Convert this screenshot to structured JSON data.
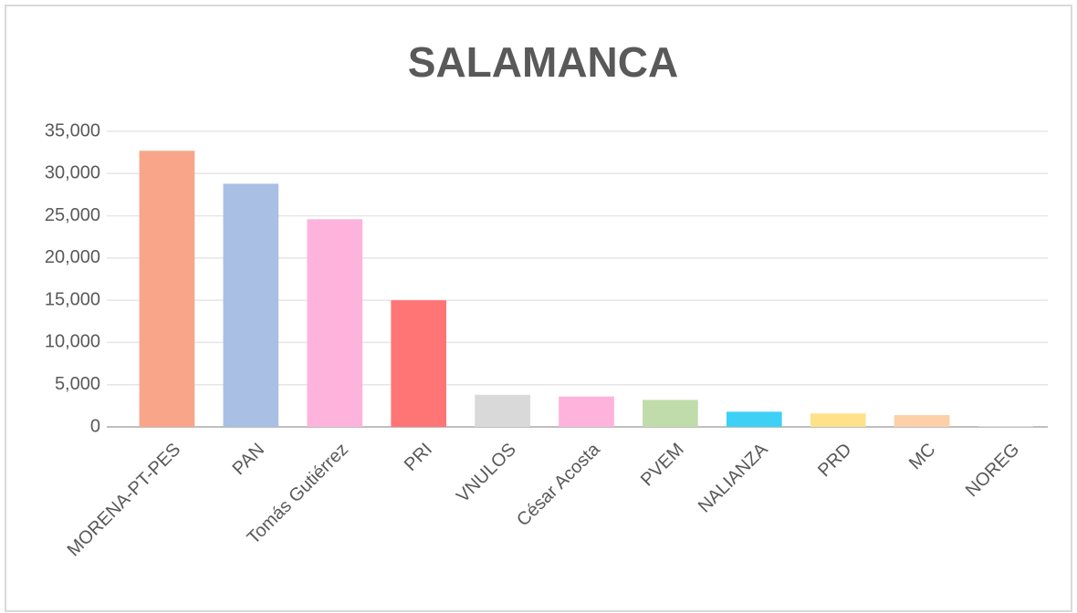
{
  "chart_data": {
    "type": "bar",
    "title": "SALAMANCA",
    "categories": [
      "MORENA-PT-PES",
      "PAN",
      "Tomás Gutiérrez",
      "PRI",
      "VNULOS",
      "César Acosta",
      "PVEM",
      "NALIANZA",
      "PRD",
      "MC",
      "NOREG"
    ],
    "values": [
      32700,
      28800,
      24600,
      15000,
      3800,
      3600,
      3200,
      1800,
      1600,
      1400,
      100
    ],
    "colors": [
      "#f8a58a",
      "#aabfe4",
      "#fdb3dc",
      "#ff7575",
      "#d9d9d9",
      "#fdb3dc",
      "#bfdcaa",
      "#3dd1f5",
      "#fde28a",
      "#fdd0a8",
      "#e0e0e0"
    ],
    "ylim": [
      0,
      35000
    ],
    "yticks": [
      0,
      {
        "value": 5000,
        "label": "5,000"
      },
      {
        "value": 10000,
        "label": "10,000"
      },
      {
        "value": 15000,
        "label": "15,000"
      },
      {
        "value": 20000,
        "label": "20,000"
      },
      {
        "value": 25000,
        "label": "25,000"
      },
      {
        "value": 30000,
        "label": "30,000"
      },
      {
        "value": 35000,
        "label": "35,000"
      }
    ],
    "grid": true
  }
}
